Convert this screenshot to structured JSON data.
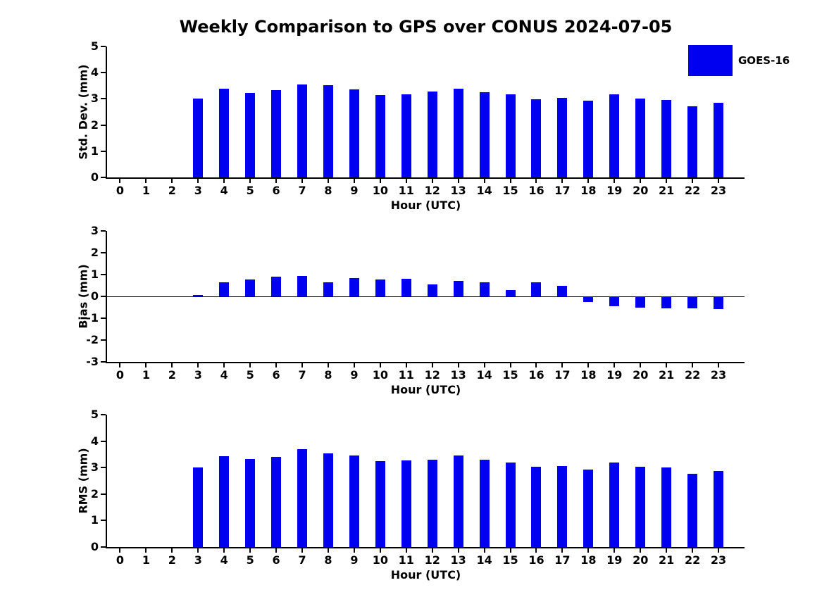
{
  "title": "Weekly Comparison to GPS over CONUS 2024-07-05",
  "legend": {
    "label": "GOES-16",
    "color": "#0000f0",
    "position": "top-right"
  },
  "chart_data": [
    {
      "type": "bar",
      "name": "std-dev",
      "ylabel": "Std. Dev. (mm)",
      "xlabel": "Hour (UTC)",
      "ylim": [
        0,
        5
      ],
      "yticks": [
        0,
        1,
        2,
        3,
        4,
        5
      ],
      "grid": false,
      "series_name": "GOES-16",
      "color": "#0000f0",
      "categories": [
        "0",
        "1",
        "2",
        "3",
        "4",
        "5",
        "6",
        "7",
        "8",
        "9",
        "10",
        "11",
        "12",
        "13",
        "14",
        "15",
        "16",
        "17",
        "18",
        "19",
        "20",
        "21",
        "22",
        "23"
      ],
      "values": [
        null,
        null,
        null,
        3.01,
        3.39,
        3.23,
        3.32,
        3.56,
        3.51,
        3.36,
        3.14,
        3.17,
        3.27,
        3.38,
        3.25,
        3.17,
        2.99,
        3.03,
        2.94,
        3.17,
        3.01,
        2.95,
        2.71,
        2.86
      ]
    },
    {
      "type": "bar",
      "name": "bias",
      "ylabel": "Bias (mm)",
      "xlabel": "Hour (UTC)",
      "ylim": [
        -3,
        3
      ],
      "yticks": [
        -3,
        -2,
        -1,
        0,
        1,
        2,
        3
      ],
      "grid": false,
      "series_name": "GOES-16",
      "color": "#0000f0",
      "categories": [
        "0",
        "1",
        "2",
        "3",
        "4",
        "5",
        "6",
        "7",
        "8",
        "9",
        "10",
        "11",
        "12",
        "13",
        "14",
        "15",
        "16",
        "17",
        "18",
        "19",
        "20",
        "21",
        "22",
        "23"
      ],
      "values": [
        null,
        null,
        null,
        0.08,
        0.64,
        0.79,
        0.89,
        0.92,
        0.64,
        0.84,
        0.77,
        0.8,
        0.55,
        0.7,
        0.66,
        0.28,
        0.66,
        0.49,
        -0.25,
        -0.46,
        -0.51,
        -0.54,
        -0.56,
        -0.58
      ]
    },
    {
      "type": "bar",
      "name": "rms",
      "ylabel": "RMS (mm)",
      "xlabel": "Hour (UTC)",
      "ylim": [
        0,
        5
      ],
      "yticks": [
        0,
        1,
        2,
        3,
        4,
        5
      ],
      "grid": false,
      "series_name": "GOES-16",
      "color": "#0000f0",
      "categories": [
        "0",
        "1",
        "2",
        "3",
        "4",
        "5",
        "6",
        "7",
        "8",
        "9",
        "10",
        "11",
        "12",
        "13",
        "14",
        "15",
        "16",
        "17",
        "18",
        "19",
        "20",
        "21",
        "22",
        "23"
      ],
      "values": [
        null,
        null,
        null,
        3.01,
        3.42,
        3.32,
        3.4,
        3.69,
        3.55,
        3.45,
        3.24,
        3.27,
        3.29,
        3.45,
        3.29,
        3.18,
        3.04,
        3.05,
        2.93,
        3.18,
        3.03,
        3.0,
        2.76,
        2.88
      ]
    }
  ]
}
